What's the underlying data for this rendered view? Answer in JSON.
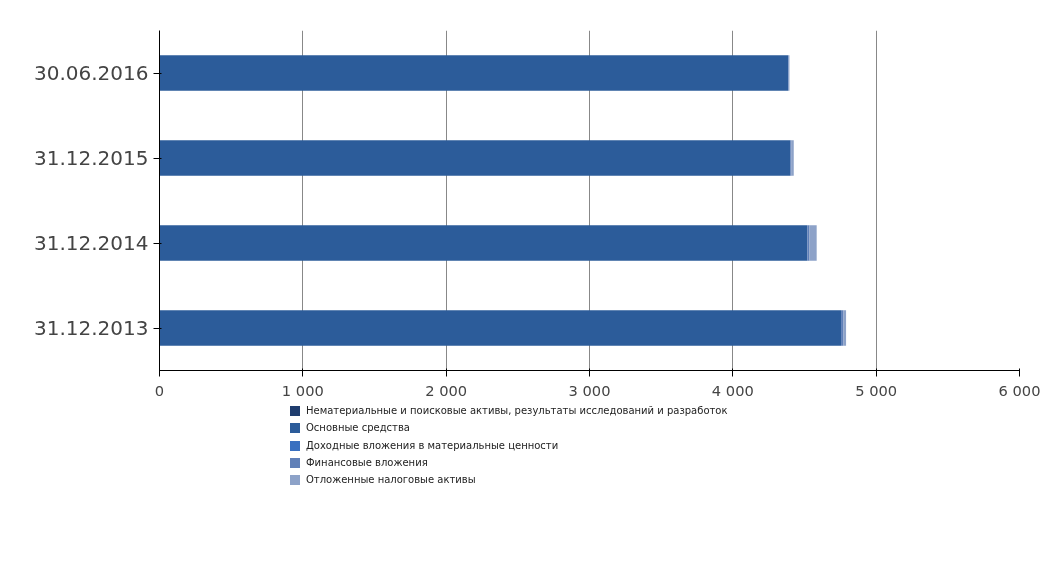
{
  "chart_data": {
    "type": "bar",
    "orientation": "horizontal",
    "stacked": true,
    "categories": [
      "30.06.2016",
      "31.12.2015",
      "31.12.2014",
      "31.12.2013"
    ],
    "series": [
      {
        "name": "Нематериальные и поисковые активы, результаты исследований и разработок",
        "color": "#1f3d6e",
        "values": [
          null,
          null,
          null,
          null
        ]
      },
      {
        "name": "Основные средства",
        "color": "#2c5c9a",
        "values": [
          4385,
          4400,
          4520,
          4755
        ]
      },
      {
        "name": "Доходные вложения в материальные ценности",
        "color": "#3a70c0",
        "values": [
          null,
          null,
          null,
          null
        ]
      },
      {
        "name": "Финансовые вложения",
        "color": "#6080b8",
        "values": [
          5,
          10,
          15,
          15
        ]
      },
      {
        "name": "Отложенные налоговые активы",
        "color": "#8da2c8",
        "values": [
          5,
          15,
          50,
          20
        ]
      }
    ],
    "xlim": [
      0,
      6000
    ],
    "xticks": [
      {
        "value": 0,
        "label": "0"
      },
      {
        "value": 1000,
        "label": "1 000"
      },
      {
        "value": 2000,
        "label": "2 000"
      },
      {
        "value": 3000,
        "label": "3 000"
      },
      {
        "value": 4000,
        "label": "4 000"
      },
      {
        "value": 5000,
        "label": "5 000"
      },
      {
        "value": 6000,
        "label": "6 000"
      }
    ],
    "grid": "x",
    "legend": "bottom"
  }
}
